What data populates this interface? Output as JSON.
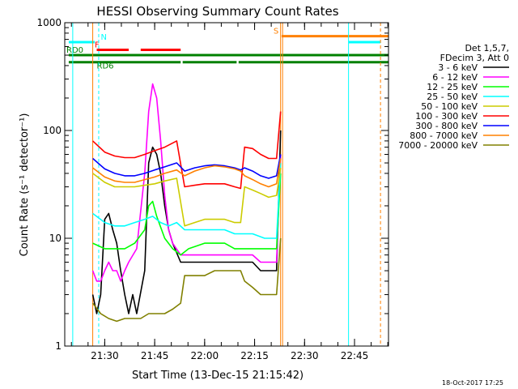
{
  "title": "HESSI Observing Summary Count Rates",
  "footer_date": "18-Oct-2017 17:25",
  "colors": {
    "background": "#ffffff",
    "axis": "#000000",
    "attenuator": "#ff8000",
    "night": "#00ffff",
    "flare": "#ff0000",
    "decimation": "#008000"
  },
  "chart_data": {
    "type": "line",
    "title": "HESSI Observing Summary Count Rates",
    "xlabel": "Start Time (13-Dec-15 21:15:42)",
    "ylabel": "Count Rate (s⁻¹ detector⁻¹)",
    "yscale": "log",
    "xlim": [
      21.3,
      22.92
    ],
    "ylim": [
      1,
      1000
    ],
    "x_ticks": [
      {
        "label": "21:30",
        "value": 21.5
      },
      {
        "label": "21:45",
        "value": 21.75
      },
      {
        "label": "22:00",
        "value": 22.0
      },
      {
        "label": "22:15",
        "value": 22.25
      },
      {
        "label": "22:30",
        "value": 22.5
      },
      {
        "label": "22:45",
        "value": 22.75
      }
    ],
    "y_ticks": [
      {
        "label": "1",
        "value": 1
      },
      {
        "label": "10",
        "value": 10
      },
      {
        "label": "100",
        "value": 100
      },
      {
        "label": "1000",
        "value": 1000
      }
    ],
    "legend_header": [
      "Det 1,5,7,",
      "FDecim 3, Att 0"
    ],
    "legend_position": "right",
    "grid": false,
    "series": [
      {
        "name": "3 - 6 keV",
        "color": "#000000",
        "points": [
          [
            21.44,
            3
          ],
          [
            21.46,
            2
          ],
          [
            21.48,
            3
          ],
          [
            21.5,
            15
          ],
          [
            21.52,
            17
          ],
          [
            21.54,
            12
          ],
          [
            21.56,
            9
          ],
          [
            21.58,
            5
          ],
          [
            21.6,
            3
          ],
          [
            21.62,
            2
          ],
          [
            21.64,
            3
          ],
          [
            21.66,
            2
          ],
          [
            21.7,
            5
          ],
          [
            21.72,
            50
          ],
          [
            21.74,
            70
          ],
          [
            21.76,
            60
          ],
          [
            21.78,
            40
          ],
          [
            21.8,
            20
          ],
          [
            21.82,
            12
          ],
          [
            21.84,
            9
          ],
          [
            21.88,
            6
          ],
          [
            21.92,
            6
          ],
          [
            22.0,
            6
          ],
          [
            22.05,
            6
          ],
          [
            22.1,
            6
          ],
          [
            22.15,
            6
          ],
          [
            22.2,
            6
          ],
          [
            22.24,
            6
          ],
          [
            22.28,
            5
          ],
          [
            22.32,
            5
          ],
          [
            22.36,
            5
          ],
          [
            22.38,
            100
          ]
        ]
      },
      {
        "name": "6 - 12 keV",
        "color": "#ff00ff",
        "points": [
          [
            21.44,
            5
          ],
          [
            21.46,
            4
          ],
          [
            21.48,
            4
          ],
          [
            21.5,
            5
          ],
          [
            21.52,
            6
          ],
          [
            21.54,
            5
          ],
          [
            21.56,
            5
          ],
          [
            21.58,
            4
          ],
          [
            21.6,
            5
          ],
          [
            21.62,
            6
          ],
          [
            21.66,
            8
          ],
          [
            21.7,
            40
          ],
          [
            21.72,
            150
          ],
          [
            21.74,
            270
          ],
          [
            21.76,
            200
          ],
          [
            21.78,
            80
          ],
          [
            21.8,
            25
          ],
          [
            21.82,
            12
          ],
          [
            21.84,
            9
          ],
          [
            21.88,
            7
          ],
          [
            21.92,
            7
          ],
          [
            22.0,
            7
          ],
          [
            22.05,
            7
          ],
          [
            22.1,
            7
          ],
          [
            22.15,
            7
          ],
          [
            22.2,
            7
          ],
          [
            22.24,
            7
          ],
          [
            22.28,
            6
          ],
          [
            22.32,
            6
          ],
          [
            22.36,
            6
          ],
          [
            22.38,
            60
          ]
        ]
      },
      {
        "name": "12 - 25 keV",
        "color": "#00ff00",
        "points": [
          [
            21.44,
            9
          ],
          [
            21.5,
            8
          ],
          [
            21.55,
            8
          ],
          [
            21.6,
            8
          ],
          [
            21.65,
            9
          ],
          [
            21.7,
            12
          ],
          [
            21.72,
            20
          ],
          [
            21.74,
            22
          ],
          [
            21.76,
            16
          ],
          [
            21.8,
            10
          ],
          [
            21.84,
            8
          ],
          [
            21.88,
            7
          ],
          [
            21.92,
            8
          ],
          [
            22.0,
            9
          ],
          [
            22.05,
            9
          ],
          [
            22.1,
            9
          ],
          [
            22.15,
            8
          ],
          [
            22.2,
            8
          ],
          [
            22.24,
            8
          ],
          [
            22.3,
            8
          ],
          [
            22.36,
            8
          ],
          [
            22.38,
            40
          ]
        ]
      },
      {
        "name": "25 - 50 keV",
        "color": "#00ffff",
        "points": [
          [
            21.44,
            17
          ],
          [
            21.5,
            14
          ],
          [
            21.55,
            13
          ],
          [
            21.6,
            13
          ],
          [
            21.65,
            14
          ],
          [
            21.7,
            15
          ],
          [
            21.74,
            16
          ],
          [
            21.78,
            14
          ],
          [
            21.82,
            13
          ],
          [
            21.86,
            14
          ],
          [
            21.9,
            12
          ],
          [
            21.95,
            12
          ],
          [
            22.0,
            12
          ],
          [
            22.05,
            12
          ],
          [
            22.1,
            12
          ],
          [
            22.15,
            11
          ],
          [
            22.2,
            11
          ],
          [
            22.24,
            11
          ],
          [
            22.3,
            10
          ],
          [
            22.36,
            10
          ],
          [
            22.38,
            50
          ]
        ]
      },
      {
        "name": "50 - 100 keV",
        "color": "#cccc00",
        "points": [
          [
            21.44,
            40
          ],
          [
            21.5,
            33
          ],
          [
            21.55,
            30
          ],
          [
            21.6,
            30
          ],
          [
            21.65,
            30
          ],
          [
            21.7,
            31
          ],
          [
            21.75,
            32
          ],
          [
            21.8,
            34
          ],
          [
            21.86,
            36
          ],
          [
            21.9,
            13
          ],
          [
            21.95,
            14
          ],
          [
            22.0,
            15
          ],
          [
            22.05,
            15
          ],
          [
            22.1,
            15
          ],
          [
            22.15,
            14
          ],
          [
            22.18,
            14
          ],
          [
            22.2,
            30
          ],
          [
            22.24,
            28
          ],
          [
            22.28,
            26
          ],
          [
            22.32,
            24
          ],
          [
            22.36,
            25
          ],
          [
            22.38,
            45
          ]
        ]
      },
      {
        "name": "100 - 300 keV",
        "color": "#ff0000",
        "points": [
          [
            21.44,
            80
          ],
          [
            21.5,
            63
          ],
          [
            21.55,
            58
          ],
          [
            21.6,
            56
          ],
          [
            21.65,
            56
          ],
          [
            21.7,
            60
          ],
          [
            21.75,
            65
          ],
          [
            21.8,
            70
          ],
          [
            21.86,
            80
          ],
          [
            21.9,
            30
          ],
          [
            21.95,
            31
          ],
          [
            22.0,
            32
          ],
          [
            22.05,
            32
          ],
          [
            22.1,
            32
          ],
          [
            22.15,
            30
          ],
          [
            22.18,
            29
          ],
          [
            22.2,
            70
          ],
          [
            22.24,
            68
          ],
          [
            22.28,
            60
          ],
          [
            22.32,
            55
          ],
          [
            22.36,
            55
          ],
          [
            22.38,
            150
          ]
        ]
      },
      {
        "name": "300 - 800 keV",
        "color": "#0000ff",
        "points": [
          [
            21.44,
            55
          ],
          [
            21.5,
            44
          ],
          [
            21.55,
            40
          ],
          [
            21.6,
            38
          ],
          [
            21.65,
            38
          ],
          [
            21.7,
            40
          ],
          [
            21.75,
            43
          ],
          [
            21.8,
            46
          ],
          [
            21.86,
            50
          ],
          [
            21.9,
            42
          ],
          [
            21.95,
            45
          ],
          [
            22.0,
            47
          ],
          [
            22.05,
            48
          ],
          [
            22.1,
            47
          ],
          [
            22.15,
            45
          ],
          [
            22.18,
            43
          ],
          [
            22.2,
            45
          ],
          [
            22.24,
            42
          ],
          [
            22.28,
            38
          ],
          [
            22.32,
            36
          ],
          [
            22.36,
            38
          ],
          [
            22.38,
            60
          ]
        ]
      },
      {
        "name": "800 - 7000 keV",
        "color": "#ff8000",
        "points": [
          [
            21.44,
            45
          ],
          [
            21.5,
            37
          ],
          [
            21.55,
            34
          ],
          [
            21.6,
            33
          ],
          [
            21.65,
            33
          ],
          [
            21.7,
            35
          ],
          [
            21.75,
            37
          ],
          [
            21.8,
            40
          ],
          [
            21.86,
            43
          ],
          [
            21.9,
            38
          ],
          [
            21.95,
            42
          ],
          [
            22.0,
            45
          ],
          [
            22.05,
            47
          ],
          [
            22.1,
            46
          ],
          [
            22.15,
            44
          ],
          [
            22.18,
            42
          ],
          [
            22.2,
            38
          ],
          [
            22.24,
            35
          ],
          [
            22.28,
            32
          ],
          [
            22.32,
            30
          ],
          [
            22.36,
            32
          ],
          [
            22.38,
            55
          ]
        ]
      },
      {
        "name": "7000 - 20000 keV",
        "color": "#808000",
        "points": [
          [
            21.44,
            2.5
          ],
          [
            21.48,
            2
          ],
          [
            21.52,
            1.8
          ],
          [
            21.56,
            1.7
          ],
          [
            21.6,
            1.8
          ],
          [
            21.64,
            1.8
          ],
          [
            21.68,
            1.8
          ],
          [
            21.72,
            2
          ],
          [
            21.76,
            2
          ],
          [
            21.8,
            2
          ],
          [
            21.84,
            2.2
          ],
          [
            21.88,
            2.5
          ],
          [
            21.9,
            4.5
          ],
          [
            21.95,
            4.5
          ],
          [
            22.0,
            4.5
          ],
          [
            22.05,
            5
          ],
          [
            22.1,
            5
          ],
          [
            22.15,
            5
          ],
          [
            22.18,
            5
          ],
          [
            22.2,
            4
          ],
          [
            22.24,
            3.5
          ],
          [
            22.28,
            3
          ],
          [
            22.32,
            3
          ],
          [
            22.36,
            3
          ],
          [
            22.38,
            10
          ]
        ]
      }
    ],
    "flags": [
      {
        "label": "N",
        "color": "#00ffff",
        "y": 660,
        "segments": [
          [
            21.32,
            21.45
          ],
          [
            22.72,
            22.88
          ]
        ]
      },
      {
        "label": "S",
        "color": "#ff8000",
        "y": 750,
        "segments": [
          [
            22.385,
            22.92
          ]
        ]
      },
      {
        "label": "F",
        "color": "#ff0000",
        "y": 560,
        "segments": [
          [
            21.46,
            21.62
          ],
          [
            21.68,
            21.88
          ]
        ]
      },
      {
        "label": "RD0",
        "color": "#008000",
        "y": 500,
        "segments": [
          [
            21.32,
            22.92
          ]
        ]
      },
      {
        "label": "RD6",
        "color": "#008000",
        "y": 430,
        "segments": [
          [
            21.32,
            21.88
          ],
          [
            21.89,
            22.16
          ],
          [
            22.17,
            22.92
          ]
        ]
      }
    ],
    "vlines": [
      {
        "x": 21.47,
        "color": "#00ffff",
        "dashed": true
      },
      {
        "x": 22.38,
        "color": "#ff8000",
        "dashed": false
      },
      {
        "x": 22.39,
        "color": "#ff8000",
        "dashed": false
      },
      {
        "x": 22.72,
        "color": "#00ffff",
        "dashed": false
      },
      {
        "x": 22.88,
        "color": "#ff8000",
        "dashed": true
      },
      {
        "x": 21.44,
        "color": "#ff8000",
        "dashed": false
      },
      {
        "x": 21.34,
        "color": "#00ffff",
        "dashed": false
      }
    ]
  }
}
